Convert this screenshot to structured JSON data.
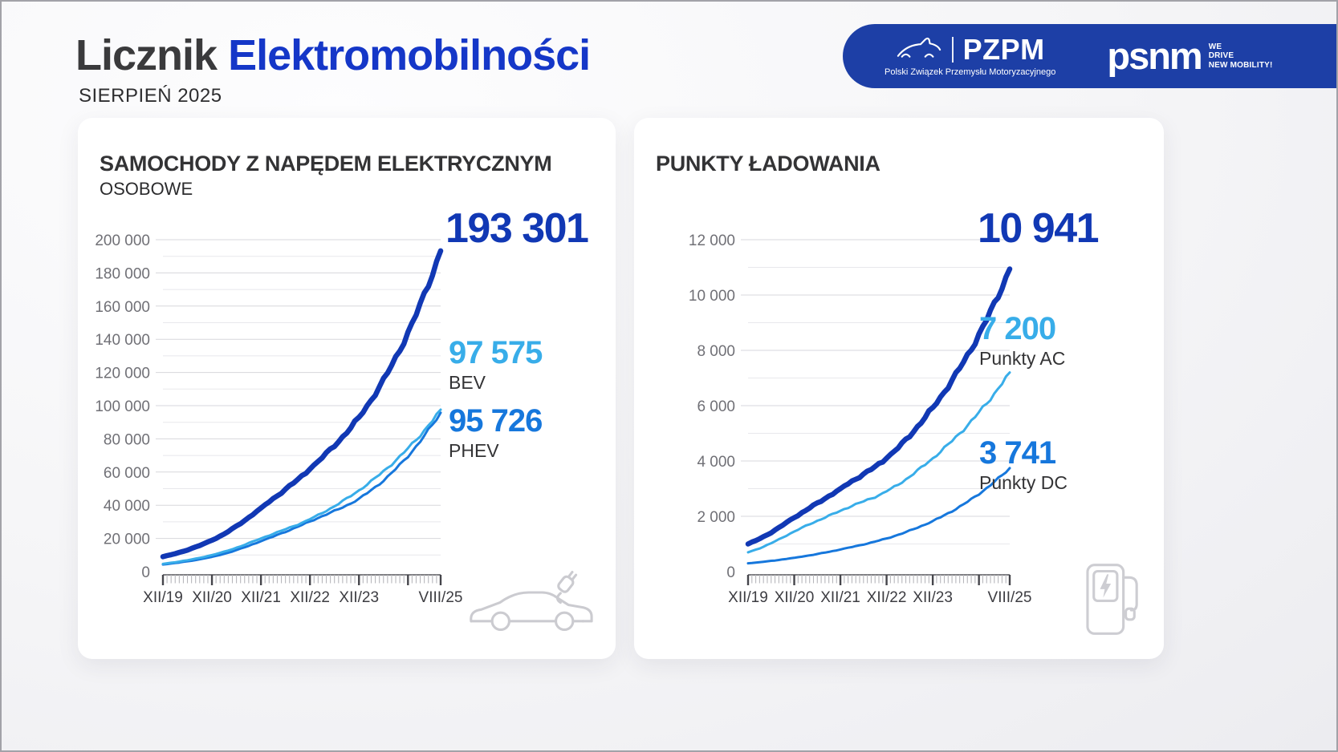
{
  "header": {
    "title_black": "Licznik",
    "title_blue": "Elektromobilności",
    "subtitle": "SIERPIEŃ 2025",
    "logos": {
      "pzpm": {
        "name": "PZPM",
        "subtitle": "Polski Związek Przemysłu Motoryzacyjnego"
      },
      "psnm": {
        "name": "psnm",
        "tagline": [
          "WE",
          "DRIVE",
          "NEW MOBILITY!"
        ]
      }
    }
  },
  "colors": {
    "title_blue": "#1537c8",
    "banner_blue": "#1d3fa6",
    "dark_blue": "#1138b4",
    "light_blue": "#38ade9",
    "mid_blue": "#1677dc"
  },
  "icons": {
    "left_card": "electric-car-icon",
    "right_card": "ev-charger-icon",
    "banner": "pzpm-car-sketch-icon"
  },
  "chart_data": [
    {
      "type": "line",
      "title": "SAMOCHODY Z NAPĘDEM ELEKTRYCZNYM",
      "subtitle": "OSOBOWE",
      "x": [
        "XII/19",
        "XII/20",
        "XII/21",
        "XII/22",
        "XII/23",
        "VIII/25"
      ],
      "x_months": [
        0,
        12,
        24,
        36,
        48,
        68
      ],
      "ylim": [
        0,
        200000
      ],
      "y_label_step": 20000,
      "y_grid_step": 10000,
      "grid": true,
      "legend_position": "right-of-line-ends",
      "series": [
        {
          "name": "Samochody z napędem elektrycznym razem",
          "label": "",
          "headline": "193 301",
          "final_value": 193301,
          "color": "#1138b4",
          "width": 6.5,
          "values": [
            9000,
            18900,
            38300,
            61800,
            93000,
            193301
          ]
        },
        {
          "name": "BEV",
          "label": "BEV",
          "headline": "97 575",
          "final_value": 97575,
          "color": "#38ade9",
          "width": 3,
          "values": [
            4700,
            10000,
            20000,
            31600,
            49000,
            97575
          ]
        },
        {
          "name": "PHEV",
          "label": "PHEV",
          "headline": "95 726",
          "final_value": 95726,
          "color": "#1677dc",
          "width": 3,
          "values": [
            4300,
            8900,
            18300,
            30200,
            44000,
            95726
          ]
        }
      ]
    },
    {
      "type": "line",
      "title": "PUNKTY ŁADOWANIA",
      "subtitle": "",
      "x": [
        "XII/19",
        "XII/20",
        "XII/21",
        "XII/22",
        "XII/23",
        "VIII/25"
      ],
      "x_months": [
        0,
        12,
        24,
        36,
        48,
        68
      ],
      "ylim": [
        0,
        12000
      ],
      "y_label_step": 2000,
      "y_grid_step": 1000,
      "grid": true,
      "legend_position": "right-of-line-ends",
      "series": [
        {
          "name": "Punkty ładowania razem",
          "label": "",
          "headline": "10 941",
          "final_value": 10941,
          "color": "#1138b4",
          "width": 6.5,
          "values": [
            1000,
            1950,
            3000,
            4100,
            5930,
            10941
          ]
        },
        {
          "name": "Punkty AC",
          "label": "Punkty AC",
          "headline": "7 200",
          "final_value": 7200,
          "color": "#38ade9",
          "width": 3,
          "values": [
            700,
            1450,
            2200,
            2900,
            4100,
            7200
          ]
        },
        {
          "name": "Punkty DC",
          "label": "Punkty DC",
          "headline": "3 741",
          "final_value": 3741,
          "color": "#1677dc",
          "width": 3,
          "values": [
            300,
            500,
            800,
            1200,
            1830,
            3741
          ]
        }
      ]
    }
  ]
}
